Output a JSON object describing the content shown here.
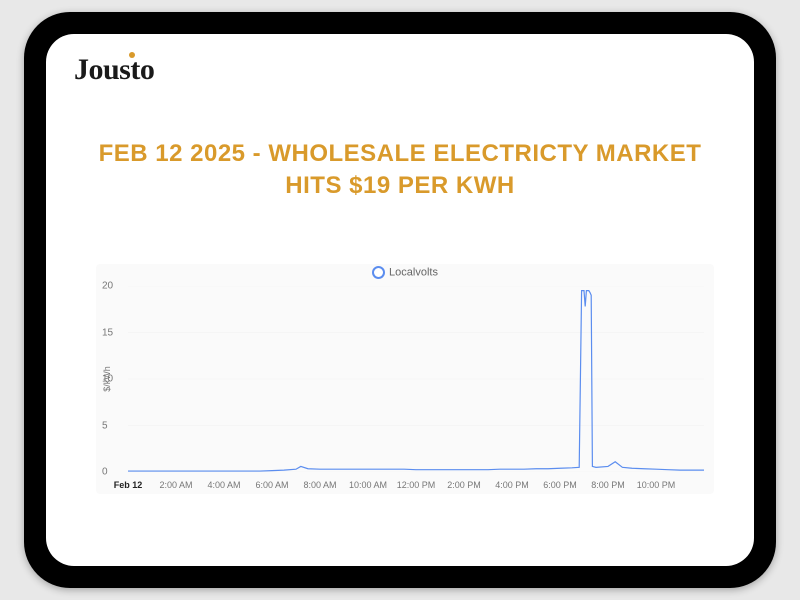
{
  "brand": {
    "name": "Jousto",
    "dot_color": "#d99a2b",
    "text_color": "#1a1a1a"
  },
  "headline": "FEB 12 2025 - WHOLESALE ELECTRICTY MARKET HITS $19 PER KWH",
  "headline_color": "#d99a2b",
  "chart": {
    "type": "line",
    "background_color": "#fafafa",
    "series_name": "Localvolts",
    "series_color": "#5b8def",
    "legend_marker": "hollow-circle",
    "ylabel": "$/kWh",
    "label_fontsize": 9,
    "tick_fontsize": 10,
    "ylim": [
      0,
      20
    ],
    "yticks": [
      0,
      5,
      10,
      15,
      20
    ],
    "grid_color": "#e5e5e5",
    "x_categories": [
      "Feb 12",
      "2:00 AM",
      "4:00 AM",
      "6:00 AM",
      "8:00 AM",
      "10:00 AM",
      "12:00 PM",
      "2:00 PM",
      "4:00 PM",
      "6:00 PM",
      "8:00 PM",
      "10:00 PM"
    ],
    "x_positions": [
      0,
      2,
      4,
      6,
      8,
      10,
      12,
      14,
      16,
      18,
      20,
      22
    ],
    "x_range": [
      0,
      24
    ],
    "data": [
      [
        0,
        0.1
      ],
      [
        0.5,
        0.1
      ],
      [
        1,
        0.1
      ],
      [
        1.5,
        0.1
      ],
      [
        2,
        0.1
      ],
      [
        2.5,
        0.1
      ],
      [
        3,
        0.1
      ],
      [
        3.5,
        0.1
      ],
      [
        4,
        0.1
      ],
      [
        4.5,
        0.1
      ],
      [
        5,
        0.1
      ],
      [
        5.5,
        0.1
      ],
      [
        6,
        0.15
      ],
      [
        6.5,
        0.2
      ],
      [
        7,
        0.3
      ],
      [
        7.2,
        0.6
      ],
      [
        7.5,
        0.35
      ],
      [
        8,
        0.3
      ],
      [
        8.5,
        0.3
      ],
      [
        9,
        0.3
      ],
      [
        9.5,
        0.3
      ],
      [
        10,
        0.3
      ],
      [
        10.5,
        0.3
      ],
      [
        11,
        0.3
      ],
      [
        11.5,
        0.3
      ],
      [
        12,
        0.25
      ],
      [
        12.5,
        0.25
      ],
      [
        13,
        0.25
      ],
      [
        13.5,
        0.25
      ],
      [
        14,
        0.25
      ],
      [
        14.5,
        0.25
      ],
      [
        15,
        0.25
      ],
      [
        15.5,
        0.3
      ],
      [
        16,
        0.3
      ],
      [
        16.5,
        0.3
      ],
      [
        17,
        0.35
      ],
      [
        17.5,
        0.35
      ],
      [
        18,
        0.4
      ],
      [
        18.5,
        0.45
      ],
      [
        18.8,
        0.5
      ],
      [
        18.9,
        19.5
      ],
      [
        19.0,
        19.5
      ],
      [
        19.05,
        17.8
      ],
      [
        19.1,
        19.5
      ],
      [
        19.2,
        19.5
      ],
      [
        19.25,
        19.3
      ],
      [
        19.3,
        19.0
      ],
      [
        19.35,
        0.6
      ],
      [
        19.5,
        0.5
      ],
      [
        20,
        0.6
      ],
      [
        20.3,
        1.1
      ],
      [
        20.6,
        0.5
      ],
      [
        21,
        0.4
      ],
      [
        21.5,
        0.35
      ],
      [
        22,
        0.3
      ],
      [
        22.5,
        0.25
      ],
      [
        23,
        0.2
      ],
      [
        23.5,
        0.2
      ],
      [
        24,
        0.2
      ]
    ]
  }
}
